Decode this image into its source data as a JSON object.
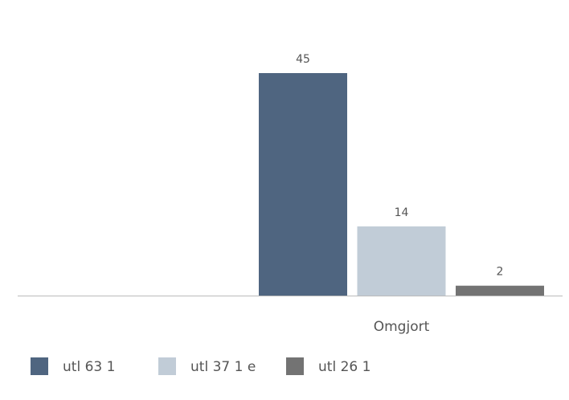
{
  "chart_data": {
    "type": "bar",
    "categories": [
      "Omgjort"
    ],
    "series": [
      {
        "name": "utl 63 1",
        "color": "#4f6580",
        "values": [
          45
        ]
      },
      {
        "name": "utl 37 1 e",
        "color": "#c1ccd7",
        "values": [
          14
        ]
      },
      {
        "name": "utl 26 1",
        "color": "#737373",
        "values": [
          2
        ]
      }
    ]
  }
}
